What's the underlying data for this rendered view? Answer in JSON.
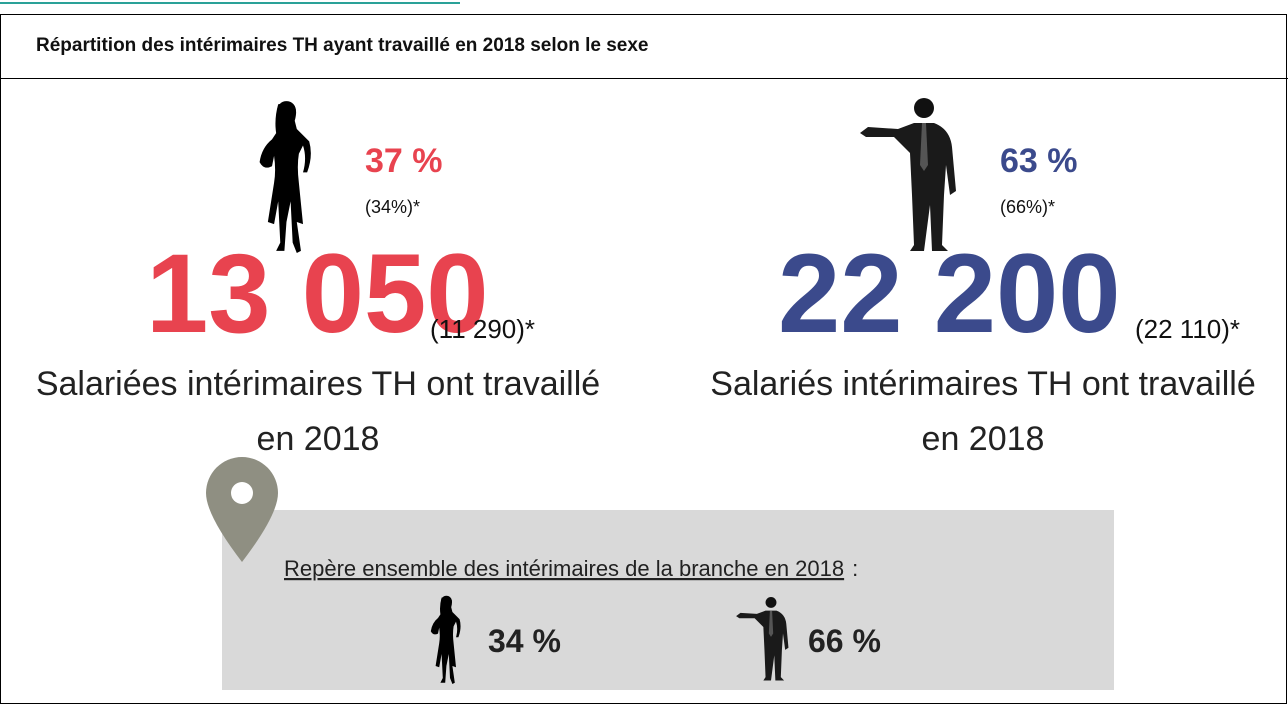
{
  "title": "Répartition des intérimaires TH ayant travaillé en 2018 selon le sexe",
  "women": {
    "percent": "37 %",
    "percent_prev": "(34%)*",
    "count": "13 050",
    "count_prev": "(11 290)*",
    "label_line1": "Salariées intérimaires TH ont travaillé",
    "label_line2": "en 2018"
  },
  "men": {
    "percent": "63 %",
    "percent_prev": "(66%)*",
    "count": "22 200",
    "count_prev": "(22 110)*",
    "label_line1": "Salariés intérimaires TH ont travaillé",
    "label_line2": "en 2018"
  },
  "reference": {
    "label": "Repère ensemble des intérimaires de la branche en 2018",
    "colon": ":",
    "women": "34 %",
    "men": "66 %"
  }
}
